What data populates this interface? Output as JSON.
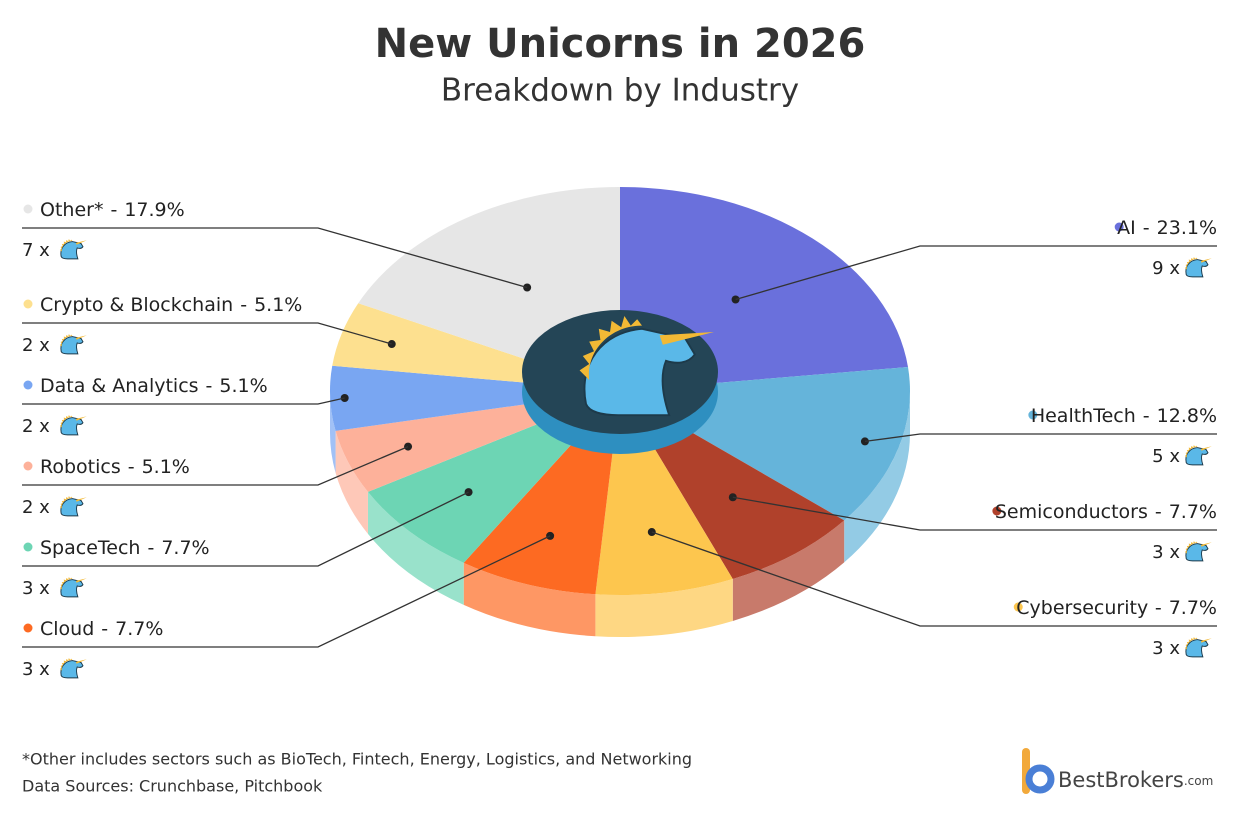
{
  "chart_data": {
    "type": "pie",
    "title": "New Unicorns in 2026",
    "subtitle": "Breakdown by Industry",
    "categories": [
      "AI",
      "HealthTech",
      "Semiconductors",
      "Cybersecurity",
      "Cloud",
      "SpaceTech",
      "Robotics",
      "Data & Analytics",
      "Crypto & Blockchain",
      "Other*"
    ],
    "values": [
      23.1,
      12.8,
      7.7,
      7.7,
      7.7,
      7.7,
      5.1,
      5.1,
      5.1,
      17.9
    ],
    "value_labels": [
      "23.1%",
      "12.8%",
      "7.7%",
      "7.7%",
      "7.7%",
      "7.7%",
      "5.1%",
      "5.1%",
      "5.1%",
      "17.9%"
    ],
    "colors": [
      "#6a70dc",
      "#65b4da",
      "#b0412b",
      "#fdc64e",
      "#fd6a22",
      "#6dd5b4",
      "#fdb19a",
      "#79a6f2",
      "#fde08f",
      "#e6e6e6"
    ],
    "counts": [
      9,
      5,
      3,
      3,
      3,
      3,
      2,
      2,
      2,
      7
    ],
    "count_labels": [
      "9 x",
      "5 x",
      "3 x",
      "3 x",
      "3 x",
      "3 x",
      "2 x",
      "2 x",
      "2 x",
      "7 x"
    ],
    "label_separator": "-"
  },
  "footnote": "*Other includes sectors such as BioTech, Fintech, Energy, Logistics, and Networking",
  "source": "Data Sources: Crunchbase, Pitchbook",
  "brand": {
    "name": "BestBrokers",
    "suffix": ".com"
  }
}
